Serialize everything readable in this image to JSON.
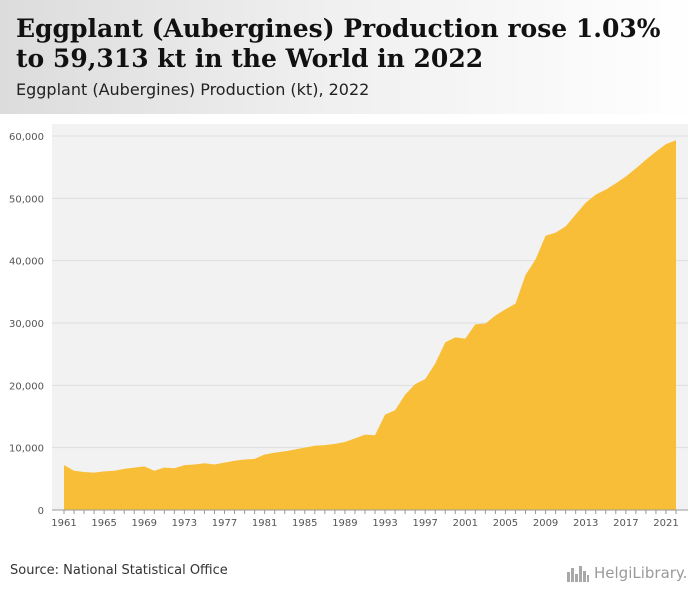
{
  "header": {
    "title": "Eggplant (Aubergines) Production rose 1.03% to 59,313 kt in the World in 2022",
    "subtitle": "Eggplant (Aubergines) Production (kt), 2022"
  },
  "footer": {
    "source": "Source: National Statistical Office",
    "logo_text": "HelgiLibrary.",
    "logo_icon": "city-skyline-icon"
  },
  "colors": {
    "area_fill": "#f9be37",
    "gridline": "#dddddd",
    "axis": "#999999",
    "tick_text": "#555555",
    "plot_background": "#f2f2f2"
  },
  "chart_data": {
    "type": "area",
    "title": "Eggplant (Aubergines) Production (kt), 2022",
    "xlabel": "",
    "ylabel": "",
    "grid": true,
    "ylim": [
      0,
      60000
    ],
    "yticks": [
      0,
      10000,
      20000,
      30000,
      40000,
      50000,
      60000
    ],
    "ytick_labels": [
      "0",
      "10,000",
      "20,000",
      "30,000",
      "40,000",
      "50,000",
      "60,000"
    ],
    "xticks": [
      1961,
      1965,
      1969,
      1973,
      1977,
      1981,
      1985,
      1989,
      1993,
      1997,
      2001,
      2005,
      2009,
      2013,
      2017,
      2021
    ],
    "x": [
      1961,
      1962,
      1963,
      1964,
      1965,
      1966,
      1967,
      1968,
      1969,
      1970,
      1971,
      1972,
      1973,
      1974,
      1975,
      1976,
      1977,
      1978,
      1979,
      1980,
      1981,
      1982,
      1983,
      1984,
      1985,
      1986,
      1987,
      1988,
      1989,
      1990,
      1991,
      1992,
      1993,
      1994,
      1995,
      1996,
      1997,
      1998,
      1999,
      2000,
      2001,
      2002,
      2003,
      2004,
      2005,
      2006,
      2007,
      2008,
      2009,
      2010,
      2011,
      2012,
      2013,
      2014,
      2015,
      2016,
      2017,
      2018,
      2019,
      2020,
      2021,
      2022
    ],
    "values": [
      7200,
      6300,
      6100,
      6000,
      6200,
      6300,
      6600,
      6800,
      7000,
      6300,
      6800,
      6700,
      7200,
      7300,
      7500,
      7300,
      7600,
      7900,
      8100,
      8200,
      8900,
      9200,
      9400,
      9700,
      10000,
      10300,
      10400,
      10600,
      10900,
      11500,
      12100,
      12000,
      15300,
      16000,
      18500,
      20200,
      21000,
      23500,
      26900,
      27700,
      27500,
      29800,
      29900,
      31200,
      32200,
      33100,
      37700,
      40200,
      44000,
      44500,
      45500,
      47400,
      49300,
      50600,
      51400,
      52400,
      53500,
      54800,
      56200,
      57500,
      58700,
      59313
    ]
  }
}
